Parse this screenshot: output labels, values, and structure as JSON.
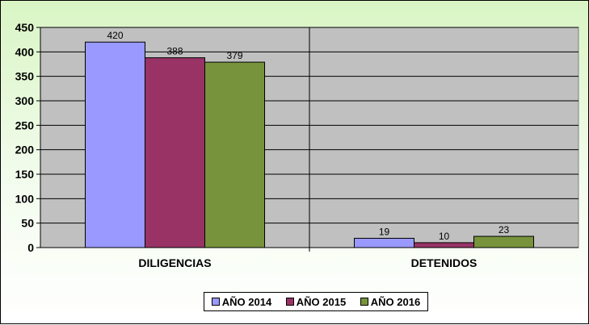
{
  "chart_data": {
    "type": "bar",
    "categories": [
      "DILIGENCIAS",
      "DETENIDOS"
    ],
    "series": [
      {
        "name": "AÑO 2014",
        "color": "#9999ff",
        "values": [
          420,
          19
        ]
      },
      {
        "name": "AÑO 2015",
        "color": "#993366",
        "values": [
          388,
          10
        ]
      },
      {
        "name": "AÑO 2016",
        "color": "#77933c",
        "values": [
          379,
          23
        ]
      }
    ],
    "ylim": [
      0,
      450
    ],
    "yticks": [
      0,
      50,
      100,
      150,
      200,
      250,
      300,
      350,
      400,
      450
    ],
    "plot_background": "#c0c0c0",
    "grid": true,
    "legend_position": "bottom"
  }
}
